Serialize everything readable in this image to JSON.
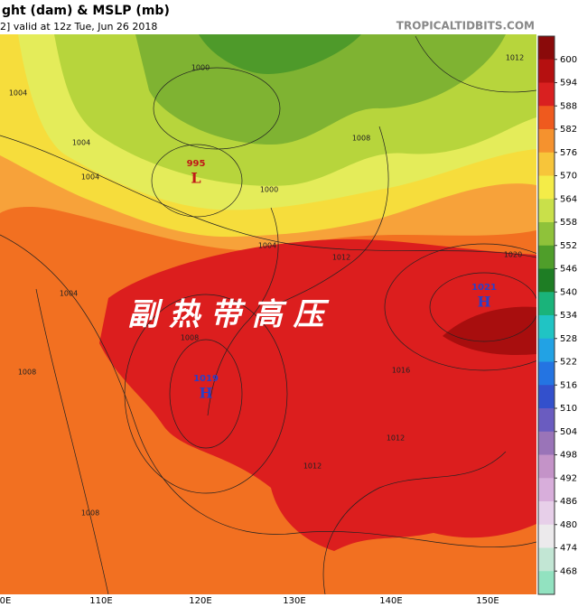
{
  "header": {
    "title": "ght (dam) & MSLP (mb)",
    "subtitle": "2]  valid at 12z Tue, Jun 26 2018",
    "watermark": "TROPICALTIDBITS.COM"
  },
  "map": {
    "label": "副 热 带 高 压",
    "centers": [
      {
        "value": "995",
        "symbol": "L"
      },
      {
        "value": "1019",
        "symbol": "H"
      },
      {
        "value": "1021",
        "symbol": "H"
      }
    ],
    "isobar_labels": [
      "1000",
      "1004",
      "1004",
      "1004",
      "1000",
      "1008",
      "1004",
      "1012",
      "1020",
      "1012",
      "1004",
      "1008",
      "1016",
      "1012",
      "1012",
      "1008",
      "1008"
    ]
  },
  "colorbar": {
    "levels": [
      600,
      594,
      588,
      582,
      576,
      570,
      564,
      558,
      552,
      546,
      540,
      534,
      528,
      522,
      516,
      510,
      504,
      498,
      492,
      486,
      480,
      474,
      468
    ],
    "colors": [
      "#8a0a0a",
      "#b51010",
      "#d92020",
      "#ef5a1e",
      "#f5922e",
      "#f7c53a",
      "#f4ec48",
      "#c9e04a",
      "#8fc23a",
      "#4f9e2a",
      "#1e7d24",
      "#1ab37a",
      "#20c4c4",
      "#22a2e4",
      "#2474e2",
      "#3350cc",
      "#6a5cc0",
      "#9a74b8",
      "#c493c8",
      "#d8aedb",
      "#e7cfe9",
      "#eceaec",
      "#c2e6d4",
      "#92e2c0"
    ]
  },
  "longitudes": [
    "0E",
    "110E",
    "120E",
    "130E",
    "140E",
    "150E"
  ]
}
